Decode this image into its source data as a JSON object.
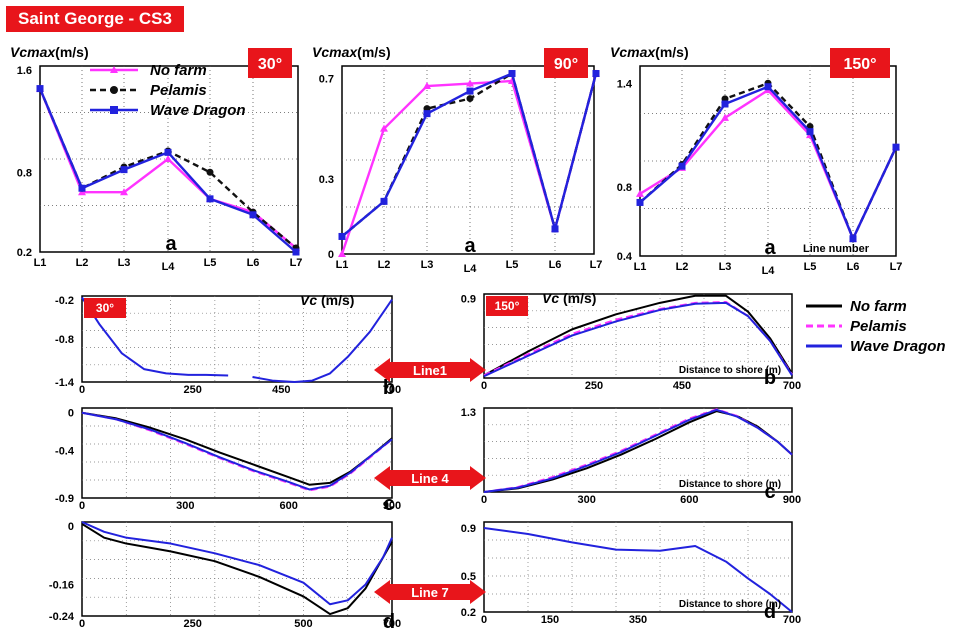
{
  "page_title": "Saint George - CS3",
  "colors": {
    "no_farm": "#ff33ff",
    "pelamis": "#111111",
    "wave_dragon": "#2222dd",
    "badge": "#e8151b"
  },
  "top_legend": {
    "entries": [
      {
        "name": "No farm",
        "style": "no_farm"
      },
      {
        "name": "Pelamis",
        "style": "pelamis"
      },
      {
        "name": "Wave Dragon",
        "style": "wave_dragon"
      }
    ]
  },
  "bottom_legend": {
    "entries": [
      {
        "name": "No farm",
        "color": "#000000",
        "dash": false
      },
      {
        "name": "Pelamis",
        "color": "#ff33ff",
        "dash": true
      },
      {
        "name": "Wave Dragon",
        "color": "#2222dd",
        "dash": false
      }
    ]
  },
  "line_labels": [
    "Line1",
    "Line 4",
    "Line 7"
  ],
  "chart_data": [
    {
      "id": "top-30",
      "type": "line",
      "badge": "30°",
      "panel_letter": "a",
      "ylabel": "Vcmax(m/s)",
      "categories": [
        "L1",
        "L2",
        "L3",
        "L4",
        "L5",
        "L6",
        "L7"
      ],
      "yticks": [
        1.6,
        0.8,
        0.2
      ],
      "ylim": [
        0.2,
        1.6
      ],
      "series": [
        {
          "name": "No farm",
          "values": [
            1.43,
            0.65,
            0.65,
            0.9,
            0.6,
            0.5,
            0.23
          ]
        },
        {
          "name": "Pelamis",
          "values": [
            1.43,
            0.68,
            0.84,
            0.96,
            0.8,
            0.5,
            0.23
          ]
        },
        {
          "name": "Wave Dragon",
          "values": [
            1.43,
            0.68,
            0.82,
            0.95,
            0.6,
            0.48,
            0.2
          ]
        }
      ]
    },
    {
      "id": "top-90",
      "type": "line",
      "badge": "90°",
      "panel_letter": "a",
      "ylabel": "Vcmax(m/s)",
      "categories": [
        "L1",
        "L2",
        "L3",
        "L4",
        "L5",
        "L6",
        "L7"
      ],
      "yticks": [
        0.7,
        0.3,
        0
      ],
      "ylim": [
        0,
        0.75
      ],
      "series": [
        {
          "name": "No farm",
          "values": [
            0.0,
            0.5,
            0.67,
            0.68,
            0.69,
            0.1,
            0.72
          ]
        },
        {
          "name": "Pelamis",
          "values": [
            0.07,
            0.21,
            0.58,
            0.62,
            0.72,
            0.1,
            0.72
          ]
        },
        {
          "name": "Wave Dragon",
          "values": [
            0.07,
            0.21,
            0.56,
            0.65,
            0.72,
            0.1,
            0.72
          ]
        }
      ]
    },
    {
      "id": "top-150",
      "type": "line",
      "badge": "150°",
      "panel_letter": "a",
      "ylabel": "Vcmax(m/s)",
      "xlabel": "Line number",
      "categories": [
        "L1",
        "L2",
        "L3",
        "L4",
        "L5",
        "L6",
        "L7"
      ],
      "yticks": [
        1.4,
        0.8,
        0.4
      ],
      "ylim": [
        0.4,
        1.5
      ],
      "series": [
        {
          "name": "No farm",
          "values": [
            0.76,
            0.91,
            1.2,
            1.36,
            1.1,
            0.5,
            1.03
          ]
        },
        {
          "name": "Pelamis",
          "values": [
            0.71,
            0.93,
            1.31,
            1.4,
            1.15,
            0.5,
            1.03
          ]
        },
        {
          "name": "Wave Dragon",
          "values": [
            0.71,
            0.92,
            1.28,
            1.38,
            1.12,
            0.5,
            1.03
          ]
        }
      ]
    },
    {
      "id": "line1-30",
      "type": "line",
      "badge": "30°",
      "panel_letter": "b",
      "ylabel": "Vc (m/s)",
      "xticks": [
        0,
        250,
        450,
        700
      ],
      "xlim": [
        0,
        700
      ],
      "yticks": [
        -0.2,
        -0.8,
        -1.4
      ],
      "ylim": [
        -1.4,
        -0.2
      ],
      "series": [
        {
          "name": "Wave Dragon",
          "x": [
            0,
            40,
            90,
            140,
            190,
            240,
            280,
            330
          ],
          "values": [
            -0.22,
            -0.6,
            -1.0,
            -1.22,
            -1.28,
            -1.3,
            -1.3,
            -1.31
          ]
        },
        {
          "name": "Wave Dragon",
          "x": [
            385,
            430,
            480,
            520,
            560,
            600,
            650,
            700
          ],
          "values": [
            -1.33,
            -1.38,
            -1.4,
            -1.38,
            -1.28,
            -1.05,
            -0.7,
            -0.25
          ]
        }
      ]
    },
    {
      "id": "line1-150",
      "type": "line",
      "badge": "150°",
      "panel_letter": "b",
      "ylabel": "Vc (m/s)",
      "xlabel": "Distance to shore (m)",
      "xticks": [
        0,
        250,
        450,
        700
      ],
      "xlim": [
        0,
        700
      ],
      "yticks": [
        0.9
      ],
      "ylim": [
        0.0,
        0.95
      ],
      "series": [
        {
          "name": "No farm",
          "x": [
            0,
            100,
            200,
            300,
            400,
            480,
            550,
            600,
            650,
            700
          ],
          "values": [
            0.03,
            0.3,
            0.55,
            0.72,
            0.85,
            0.93,
            0.93,
            0.75,
            0.45,
            0.05
          ]
        },
        {
          "name": "Pelamis",
          "x": [
            0,
            100,
            200,
            300,
            400,
            480,
            550,
            600,
            650,
            700
          ],
          "values": [
            0.03,
            0.27,
            0.5,
            0.66,
            0.78,
            0.85,
            0.86,
            0.7,
            0.42,
            0.04
          ]
        },
        {
          "name": "Wave Dragon",
          "x": [
            0,
            100,
            200,
            300,
            400,
            480,
            550,
            600,
            650,
            700
          ],
          "values": [
            0.02,
            0.25,
            0.48,
            0.64,
            0.77,
            0.84,
            0.85,
            0.7,
            0.42,
            0.03
          ]
        }
      ]
    },
    {
      "id": "line4-30",
      "type": "line",
      "panel_letter": "c",
      "xticks": [
        0,
        300,
        600,
        900
      ],
      "xlim": [
        0,
        900
      ],
      "yticks": [
        0,
        -0.4,
        -0.9
      ],
      "ylim": [
        -0.9,
        0.05
      ],
      "series": [
        {
          "name": "No farm",
          "x": [
            0,
            100,
            200,
            300,
            400,
            500,
            600,
            660,
            720,
            780,
            840,
            900
          ],
          "values": [
            0.0,
            -0.06,
            -0.16,
            -0.28,
            -0.42,
            -0.55,
            -0.68,
            -0.76,
            -0.74,
            -0.62,
            -0.45,
            -0.27
          ]
        },
        {
          "name": "Pelamis",
          "x": [
            0,
            100,
            200,
            300,
            400,
            500,
            600,
            660,
            720,
            780,
            840,
            900
          ],
          "values": [
            0.0,
            -0.07,
            -0.19,
            -0.33,
            -0.48,
            -0.62,
            -0.74,
            -0.82,
            -0.78,
            -0.64,
            -0.46,
            -0.28
          ]
        },
        {
          "name": "Wave Dragon",
          "x": [
            0,
            100,
            200,
            300,
            400,
            500,
            600,
            660,
            720,
            780,
            840,
            900
          ],
          "values": [
            0.0,
            -0.07,
            -0.18,
            -0.32,
            -0.47,
            -0.61,
            -0.73,
            -0.81,
            -0.77,
            -0.63,
            -0.45,
            -0.28
          ]
        }
      ]
    },
    {
      "id": "line4-150",
      "type": "line",
      "panel_letter": "c",
      "xlabel": "Distance to shore  (m)",
      "xticks": [
        0,
        300,
        600,
        900
      ],
      "xlim": [
        0,
        900
      ],
      "yticks": [
        1.3
      ],
      "ylim": [
        0.0,
        1.35
      ],
      "series": [
        {
          "name": "No farm",
          "x": [
            0,
            100,
            200,
            300,
            400,
            500,
            600,
            680,
            740,
            800,
            860,
            900
          ],
          "values": [
            0.0,
            0.06,
            0.2,
            0.38,
            0.6,
            0.85,
            1.12,
            1.3,
            1.22,
            1.05,
            0.8,
            0.6
          ]
        },
        {
          "name": "Pelamis",
          "x": [
            0,
            100,
            200,
            300,
            400,
            500,
            600,
            680,
            740,
            800,
            860,
            900
          ],
          "values": [
            0.0,
            0.08,
            0.24,
            0.44,
            0.66,
            0.92,
            1.18,
            1.33,
            1.22,
            1.03,
            0.8,
            0.6
          ]
        },
        {
          "name": "Wave Dragon",
          "x": [
            0,
            100,
            200,
            300,
            400,
            500,
            600,
            680,
            740,
            800,
            860,
            900
          ],
          "values": [
            0.0,
            0.07,
            0.22,
            0.42,
            0.64,
            0.9,
            1.16,
            1.32,
            1.21,
            1.03,
            0.8,
            0.6
          ]
        }
      ]
    },
    {
      "id": "line7-30",
      "type": "line",
      "panel_letter": "d",
      "xticks": [
        0,
        250,
        500,
        700
      ],
      "xlim": [
        0,
        700
      ],
      "yticks": [
        0,
        -0.16,
        -0.24
      ],
      "ylim": [
        -0.24,
        0.0
      ],
      "series": [
        {
          "name": "No farm",
          "x": [
            0,
            50,
            100,
            200,
            300,
            400,
            500,
            560,
            600,
            640,
            680,
            700
          ],
          "values": [
            -0.005,
            -0.04,
            -0.055,
            -0.075,
            -0.1,
            -0.14,
            -0.19,
            -0.235,
            -0.22,
            -0.17,
            -0.09,
            -0.05
          ]
        },
        {
          "name": "Wave Dragon",
          "x": [
            0,
            50,
            100,
            200,
            300,
            400,
            500,
            560,
            600,
            640,
            680,
            700
          ],
          "values": [
            0.0,
            -0.025,
            -0.04,
            -0.055,
            -0.08,
            -0.11,
            -0.155,
            -0.21,
            -0.2,
            -0.16,
            -0.09,
            -0.04
          ]
        }
      ]
    },
    {
      "id": "line7-150",
      "type": "line",
      "panel_letter": "d",
      "xlabel": "Distance to shore (m)",
      "xticks": [
        0,
        150,
        350,
        700
      ],
      "xlim": [
        0,
        700
      ],
      "yticks": [
        0.9,
        0.5,
        0.2
      ],
      "ylim": [
        0.2,
        0.95
      ],
      "series": [
        {
          "name": "Wave Dragon",
          "x": [
            0,
            100,
            200,
            300,
            400,
            480,
            550,
            600,
            650,
            700
          ],
          "values": [
            0.9,
            0.85,
            0.78,
            0.72,
            0.71,
            0.75,
            0.62,
            0.48,
            0.35,
            0.2
          ]
        }
      ]
    }
  ]
}
